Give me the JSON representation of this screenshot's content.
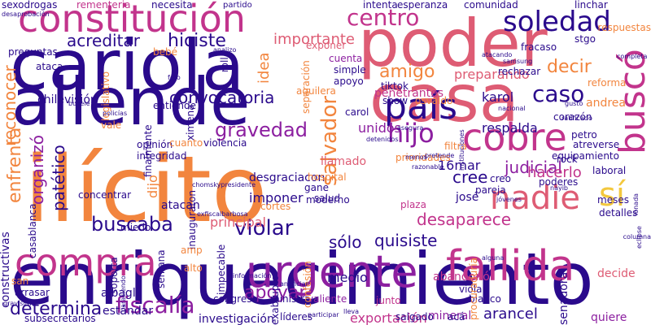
{
  "colors": {
    "navy": "#2a0a8c",
    "purple": "#8c1fa0",
    "magenta": "#c2348c",
    "pink": "#de5c74",
    "orange": "#f2853e",
    "yellow": "#f3c83e"
  },
  "words": [
    {
      "t": "enriquecimiento",
      "c": "navy"
    },
    {
      "t": "ilícito",
      "c": "orange"
    },
    {
      "t": "poder",
      "c": "pink"
    },
    {
      "t": "cariola",
      "c": "navy"
    },
    {
      "t": "allende",
      "c": "navy"
    },
    {
      "t": "casa",
      "c": "pink"
    },
    {
      "t": "constitución",
      "c": "magenta"
    },
    {
      "t": "urgente",
      "c": "purple"
    },
    {
      "t": "fallida",
      "c": "magenta"
    },
    {
      "t": "compra",
      "c": "magenta"
    },
    {
      "t": "cobre",
      "c": "magenta"
    },
    {
      "t": "nadie",
      "c": "pink"
    },
    {
      "t": "país",
      "c": "navy"
    },
    {
      "t": "buscó",
      "c": "magenta"
    },
    {
      "t": "sí",
      "c": "yellow"
    },
    {
      "t": "soledad",
      "c": "navy"
    },
    {
      "t": "centro",
      "c": "magenta"
    },
    {
      "t": "hijo",
      "c": "purple"
    },
    {
      "t": "caso",
      "c": "navy"
    },
    {
      "t": "salvador",
      "c": "orange"
    },
    {
      "t": "fiscalía",
      "c": "purple"
    },
    {
      "t": "determina",
      "c": "navy"
    },
    {
      "t": "violar",
      "c": "navy"
    },
    {
      "t": "sólo",
      "c": "navy"
    },
    {
      "t": "quisiste",
      "c": "navy"
    },
    {
      "t": "desaparece",
      "c": "magenta"
    },
    {
      "t": "buscaba",
      "c": "navy"
    },
    {
      "t": "gravedad",
      "c": "purple"
    },
    {
      "t": "judicial",
      "c": "purple"
    },
    {
      "t": "decir",
      "c": "orange"
    },
    {
      "t": "amigo",
      "c": "orange"
    },
    {
      "t": "hiciste",
      "c": "navy"
    },
    {
      "t": "acreditar",
      "c": "navy"
    },
    {
      "t": "convocatoria",
      "c": "navy"
    },
    {
      "t": "importante",
      "c": "pink"
    },
    {
      "t": "preparando",
      "c": "pink"
    },
    {
      "t": "respalda",
      "c": "navy"
    },
    {
      "t": "hacerlo",
      "c": "magenta"
    },
    {
      "t": "cree",
      "c": "navy"
    },
    {
      "t": "apoyar",
      "c": "purple"
    },
    {
      "t": "exportación",
      "c": "magenta"
    },
    {
      "t": "mineral",
      "c": "purple"
    },
    {
      "t": "arancel",
      "c": "navy"
    },
    {
      "t": "medio",
      "c": "navy"
    },
    {
      "t": "enfrenta",
      "c": "orange"
    },
    {
      "t": "organizó",
      "c": "purple"
    },
    {
      "t": "patético",
      "c": "navy"
    },
    {
      "t": "reconocer",
      "c": "orange"
    },
    {
      "t": "chilevisión",
      "c": "navy"
    },
    {
      "t": "imponer",
      "c": "navy"
    },
    {
      "t": "dijo",
      "c": "orange"
    },
    {
      "t": "karol",
      "c": "navy"
    },
    {
      "t": "principal",
      "c": "pink"
    },
    {
      "t": "decide",
      "c": "pink"
    },
    {
      "t": "abandonó",
      "c": "magenta"
    },
    {
      "t": "investigación",
      "c": "navy"
    },
    {
      "t": "subsecretarios",
      "c": "navy"
    },
    {
      "t": "constructivas",
      "c": "navy"
    },
    {
      "t": "senadora",
      "c": "navy"
    },
    {
      "t": "16mar",
      "c": "navy"
    },
    {
      "t": "idea",
      "c": "orange"
    },
    {
      "t": "atacan",
      "c": "navy"
    },
    {
      "t": "albagli",
      "c": "navy"
    },
    {
      "t": "desgraciacon",
      "c": "navy"
    },
    {
      "t": "unidos",
      "c": "purple"
    },
    {
      "t": "llamado",
      "c": "pink"
    },
    {
      "t": "plaza",
      "c": "magenta"
    },
    {
      "t": "josé",
      "c": "navy"
    },
    {
      "t": "moderno",
      "c": "navy"
    },
    {
      "t": "gane",
      "c": "navy"
    },
    {
      "t": "penetrantes",
      "c": "magenta"
    },
    {
      "t": "simple",
      "c": "navy"
    },
    {
      "t": "apoyo",
      "c": "navy"
    },
    {
      "t": "exponer",
      "c": "pink"
    },
    {
      "t": "cuenta",
      "c": "purple"
    },
    {
      "t": "ministra",
      "c": "navy"
    },
    {
      "t": "valiente",
      "c": "purple"
    },
    {
      "t": "junto",
      "c": "magenta"
    },
    {
      "t": "congreso",
      "c": "navy"
    },
    {
      "t": "estándar",
      "c": "navy"
    },
    {
      "t": "viola",
      "c": "navy"
    },
    {
      "t": "pareja",
      "c": "navy"
    },
    {
      "t": "creo",
      "c": "navy"
    },
    {
      "t": "poderes",
      "c": "navy"
    },
    {
      "t": "laboral",
      "c": "navy"
    },
    {
      "t": "detalles",
      "c": "navy"
    },
    {
      "t": "meses",
      "c": "navy"
    },
    {
      "t": "blanco",
      "c": "navy"
    },
    {
      "t": "salgado",
      "c": "navy"
    },
    {
      "t": "acá",
      "c": "navy"
    },
    {
      "t": "quiere",
      "c": "purple"
    },
    {
      "t": "líderes",
      "c": "navy"
    },
    {
      "t": "petro",
      "c": "navy"
    },
    {
      "t": "andrea",
      "c": "orange"
    },
    {
      "t": "corazón",
      "c": "navy"
    },
    {
      "t": "reforma",
      "c": "orange"
    },
    {
      "t": "osvaldo",
      "c": "orange"
    },
    {
      "t": "show",
      "c": "navy"
    },
    {
      "t": "tiktok",
      "c": "navy"
    },
    {
      "t": "rechazar",
      "c": "navy"
    },
    {
      "t": "fracaso",
      "c": "navy"
    },
    {
      "t": "stgo",
      "c": "navy"
    },
    {
      "t": "respuestas",
      "c": "orange"
    },
    {
      "t": "linchar",
      "c": "navy"
    },
    {
      "t": "comunidad",
      "c": "navy"
    },
    {
      "t": "esperanza",
      "c": "navy"
    },
    {
      "t": "intenta",
      "c": "navy"
    },
    {
      "t": "necesita",
      "c": "navy"
    },
    {
      "t": "rementeria",
      "c": "magenta"
    },
    {
      "t": "sexodrogas",
      "c": "navy"
    },
    {
      "t": "preguntas",
      "c": "navy"
    },
    {
      "t": "ataca",
      "c": "navy"
    },
    {
      "t": "bebé",
      "c": "orange"
    },
    {
      "t": "roll",
      "c": "navy"
    },
    {
      "t": "entiende",
      "c": "navy"
    },
    {
      "t": "finalmente",
      "c": "navy"
    },
    {
      "t": "vale",
      "c": "orange"
    },
    {
      "t": "ximena",
      "c": "navy"
    },
    {
      "t": "violencia",
      "c": "navy"
    },
    {
      "t": "opinión",
      "c": "navy"
    },
    {
      "t": "integridad",
      "c": "navy"
    },
    {
      "t": "concentrar",
      "c": "navy"
    },
    {
      "t": "casablanca",
      "c": "navy"
    },
    {
      "t": "miedo",
      "c": "navy"
    },
    {
      "t": "cortes",
      "c": "orange"
    },
    {
      "t": "hospital",
      "c": "orange"
    },
    {
      "t": "prioridades",
      "c": "orange"
    },
    {
      "t": "filtra",
      "c": "orange"
    },
    {
      "t": "atreverse",
      "c": "navy"
    },
    {
      "t": "equipamiento",
      "c": "navy"
    },
    {
      "t": "aguilera",
      "c": "orange"
    },
    {
      "t": "carol",
      "c": "navy"
    },
    {
      "t": "inauguraron",
      "c": "navy"
    },
    {
      "t": "impecable",
      "c": "navy"
    },
    {
      "t": "salud",
      "c": "navy"
    },
    {
      "t": "soporta",
      "c": "navy"
    },
    {
      "t": "semana",
      "c": "navy"
    },
    {
      "t": "exabrupto",
      "c": "navy"
    },
    {
      "t": "procuraduría",
      "c": "orange"
    },
    {
      "t": "confesión",
      "c": "orange"
    },
    {
      "t": "san",
      "c": "orange"
    },
    {
      "t": "arrasar",
      "c": "navy"
    },
    {
      "t": "separación",
      "c": "orange"
    },
    {
      "t": "legislativo",
      "c": "orange"
    },
    {
      "t": "cuanto",
      "c": "orange"
    },
    {
      "t": "rock",
      "c": "navy"
    },
    {
      "t": "amp",
      "c": "orange"
    },
    {
      "t": "alto",
      "c": "orange"
    },
    {
      "t": "partido",
      "c": "navy"
    },
    {
      "t": "foto",
      "c": "navy"
    },
    {
      "t": "analizo",
      "c": "navy"
    },
    {
      "t": "bukele",
      "c": "navy"
    },
    {
      "t": "policías",
      "c": "navy"
    },
    {
      "t": "completa",
      "c": "navy"
    },
    {
      "t": "atacando",
      "c": "navy"
    },
    {
      "t": "nacional",
      "c": "navy"
    },
    {
      "t": "gustó",
      "c": "navy"
    },
    {
      "t": "ratificado",
      "c": "navy"
    },
    {
      "t": "asegura",
      "c": "navy"
    },
    {
      "t": "detenidos",
      "c": "navy"
    },
    {
      "t": "pretende",
      "c": "navy"
    },
    {
      "t": "razonable",
      "c": "navy"
    },
    {
      "t": "jóvenes",
      "c": "navy"
    },
    {
      "t": "instituciones",
      "c": "navy"
    },
    {
      "t": "samsung",
      "c": "navy"
    },
    {
      "t": "eclipse",
      "c": "navy"
    },
    {
      "t": "menos",
      "c": "navy"
    },
    {
      "t": "nayib",
      "c": "navy"
    },
    {
      "t": "columna",
      "c": "navy"
    },
    {
      "t": "alguna",
      "c": "navy"
    },
    {
      "t": "gravísimo",
      "c": "navy"
    },
    {
      "t": "participar",
      "c": "navy"
    },
    {
      "t": "información",
      "c": "navy"
    },
    {
      "t": "paraciendo",
      "c": "navy"
    },
    {
      "t": "desaprobación",
      "c": "navy"
    },
    {
      "t": "lleva",
      "c": "navy"
    },
    {
      "t": "exfiscalbarbosa",
      "c": "navy"
    },
    {
      "t": "chomskypresidente",
      "c": "navy"
    },
    {
      "t": "lonada",
      "c": "navy"
    },
    {
      "t": "anunciar",
      "c": "navy"
    }
  ]
}
